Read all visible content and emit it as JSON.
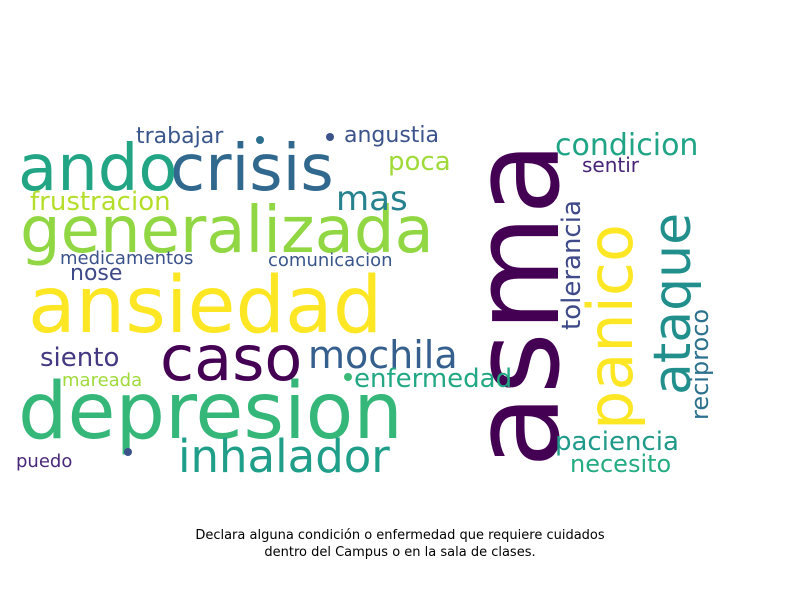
{
  "wordcloud": {
    "words": [
      {
        "text": "asma",
        "color": "#440154"
      },
      {
        "text": "ansiedad",
        "color": "#fde725"
      },
      {
        "text": "depresion",
        "color": "#35b779"
      },
      {
        "text": "generalizada",
        "color": "#90d743"
      },
      {
        "text": "crisis",
        "color": "#31688e"
      },
      {
        "text": "ando",
        "color": "#21a585"
      },
      {
        "text": "caso",
        "color": "#440154"
      },
      {
        "text": "panico",
        "color": "#fde725"
      },
      {
        "text": "ataque",
        "color": "#21908d"
      },
      {
        "text": "inhalador",
        "color": "#1f9e89"
      },
      {
        "text": "mochila",
        "color": "#355f8d"
      },
      {
        "text": "mas",
        "color": "#26828e"
      },
      {
        "text": "condicion",
        "color": "#20a486"
      },
      {
        "text": "tolerancia",
        "color": "#3e4a89"
      },
      {
        "text": "enfermedad",
        "color": "#22a884"
      },
      {
        "text": "paciencia",
        "color": "#1f9a8a"
      },
      {
        "text": "necesito",
        "color": "#25ac82"
      },
      {
        "text": "siento",
        "color": "#453882"
      },
      {
        "text": "frustracion",
        "color": "#b5de2b"
      },
      {
        "text": "poca",
        "color": "#a0da39"
      },
      {
        "text": "reciproco",
        "color": "#2c728e"
      },
      {
        "text": "trabajar",
        "color": "#39568c"
      },
      {
        "text": "angustia",
        "color": "#3b528b"
      },
      {
        "text": "nose",
        "color": "#3e4989"
      },
      {
        "text": "medicamentos",
        "color": "#3b528b"
      },
      {
        "text": "comunicacion",
        "color": "#39568c"
      },
      {
        "text": "sentir",
        "color": "#482576"
      },
      {
        "text": "mareada",
        "color": "#9fda3a"
      },
      {
        "text": "puedo",
        "color": "#482878"
      }
    ]
  },
  "caption": {
    "line1": "Declara alguna condición o enfermedad que requiere cuidados",
    "line2": "dentro del Campus o en la sala de clases."
  }
}
